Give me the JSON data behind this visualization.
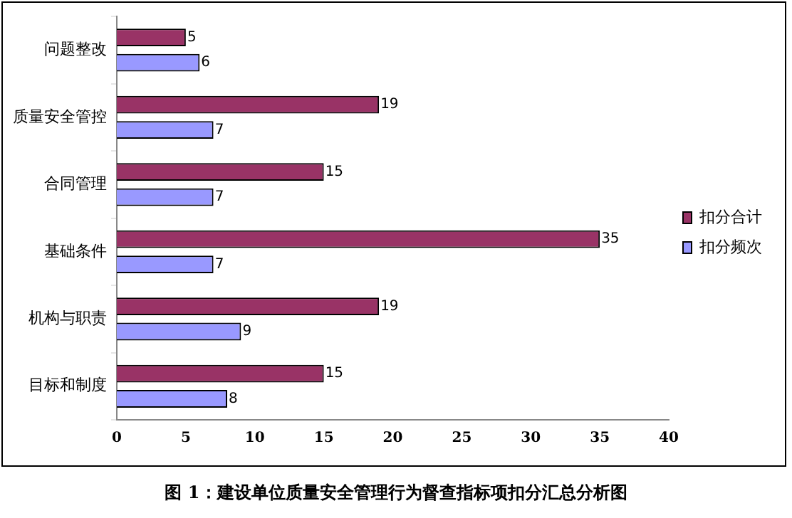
{
  "chart_data": {
    "type": "bar",
    "orientation": "horizontal",
    "title": "图 1：建设单位质量安全管理行为督查指标项扣分汇总分析图",
    "categories": [
      "问题整改",
      "质量安全管控",
      "合同管理",
      "基础条件",
      "机构与职责",
      "目标和制度"
    ],
    "series": [
      {
        "name": "扣分合计",
        "color": "#993366",
        "values": [
          5,
          19,
          15,
          35,
          19,
          15
        ]
      },
      {
        "name": "扣分频次",
        "color": "#9999ff",
        "values": [
          6,
          7,
          7,
          7,
          9,
          8
        ]
      }
    ],
    "xlim": [
      0,
      40
    ],
    "xticks": [
      0,
      5,
      10,
      15,
      20,
      25,
      30,
      35,
      40
    ],
    "grid": false,
    "legend": "right",
    "data_labels": true
  }
}
